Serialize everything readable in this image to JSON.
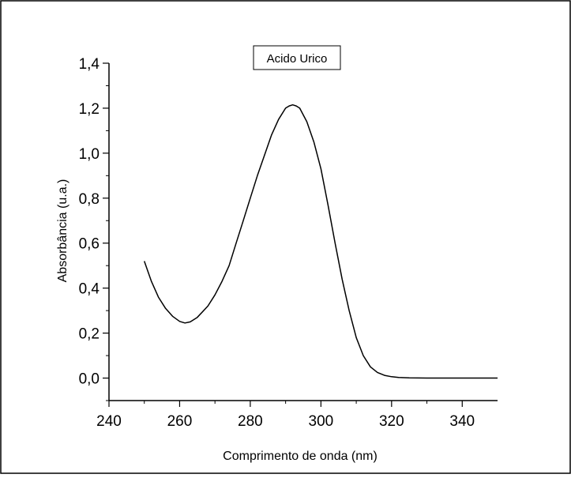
{
  "chart_data": {
    "type": "line",
    "title": "",
    "legend": {
      "entries": [
        "Acido Urico"
      ],
      "placement": "top-center"
    },
    "xlabel": "Comprimento de onda (nm)",
    "ylabel": "Absorbância (u.a.)",
    "xlim": [
      240,
      350
    ],
    "ylim": [
      -0.1,
      1.4
    ],
    "x_ticks": [
      "240",
      "260",
      "280",
      "300",
      "320",
      "340"
    ],
    "y_ticks": [
      "0,0",
      "0,2",
      "0,4",
      "0,6",
      "0,8",
      "1,0",
      "1,2",
      "1,4"
    ],
    "grid": false,
    "series": [
      {
        "name": "Acido Urico",
        "color": "#000000",
        "x": [
          250,
          252,
          254,
          256,
          258,
          260,
          261.5,
          263,
          265,
          268,
          270,
          272,
          274,
          276,
          278,
          280,
          282,
          284,
          286,
          288,
          290,
          291,
          292,
          293,
          294,
          296,
          298,
          300,
          302,
          304,
          306,
          308,
          310,
          312,
          314,
          316,
          318,
          320,
          322,
          325,
          330,
          340,
          350
        ],
        "y": [
          0.52,
          0.43,
          0.36,
          0.31,
          0.275,
          0.252,
          0.245,
          0.25,
          0.27,
          0.32,
          0.37,
          0.43,
          0.5,
          0.6,
          0.7,
          0.8,
          0.9,
          0.99,
          1.08,
          1.15,
          1.2,
          1.21,
          1.215,
          1.21,
          1.2,
          1.14,
          1.05,
          0.93,
          0.77,
          0.6,
          0.44,
          0.3,
          0.18,
          0.1,
          0.05,
          0.025,
          0.012,
          0.006,
          0.003,
          0.001,
          0.0,
          0.0,
          0.0
        ]
      }
    ]
  }
}
